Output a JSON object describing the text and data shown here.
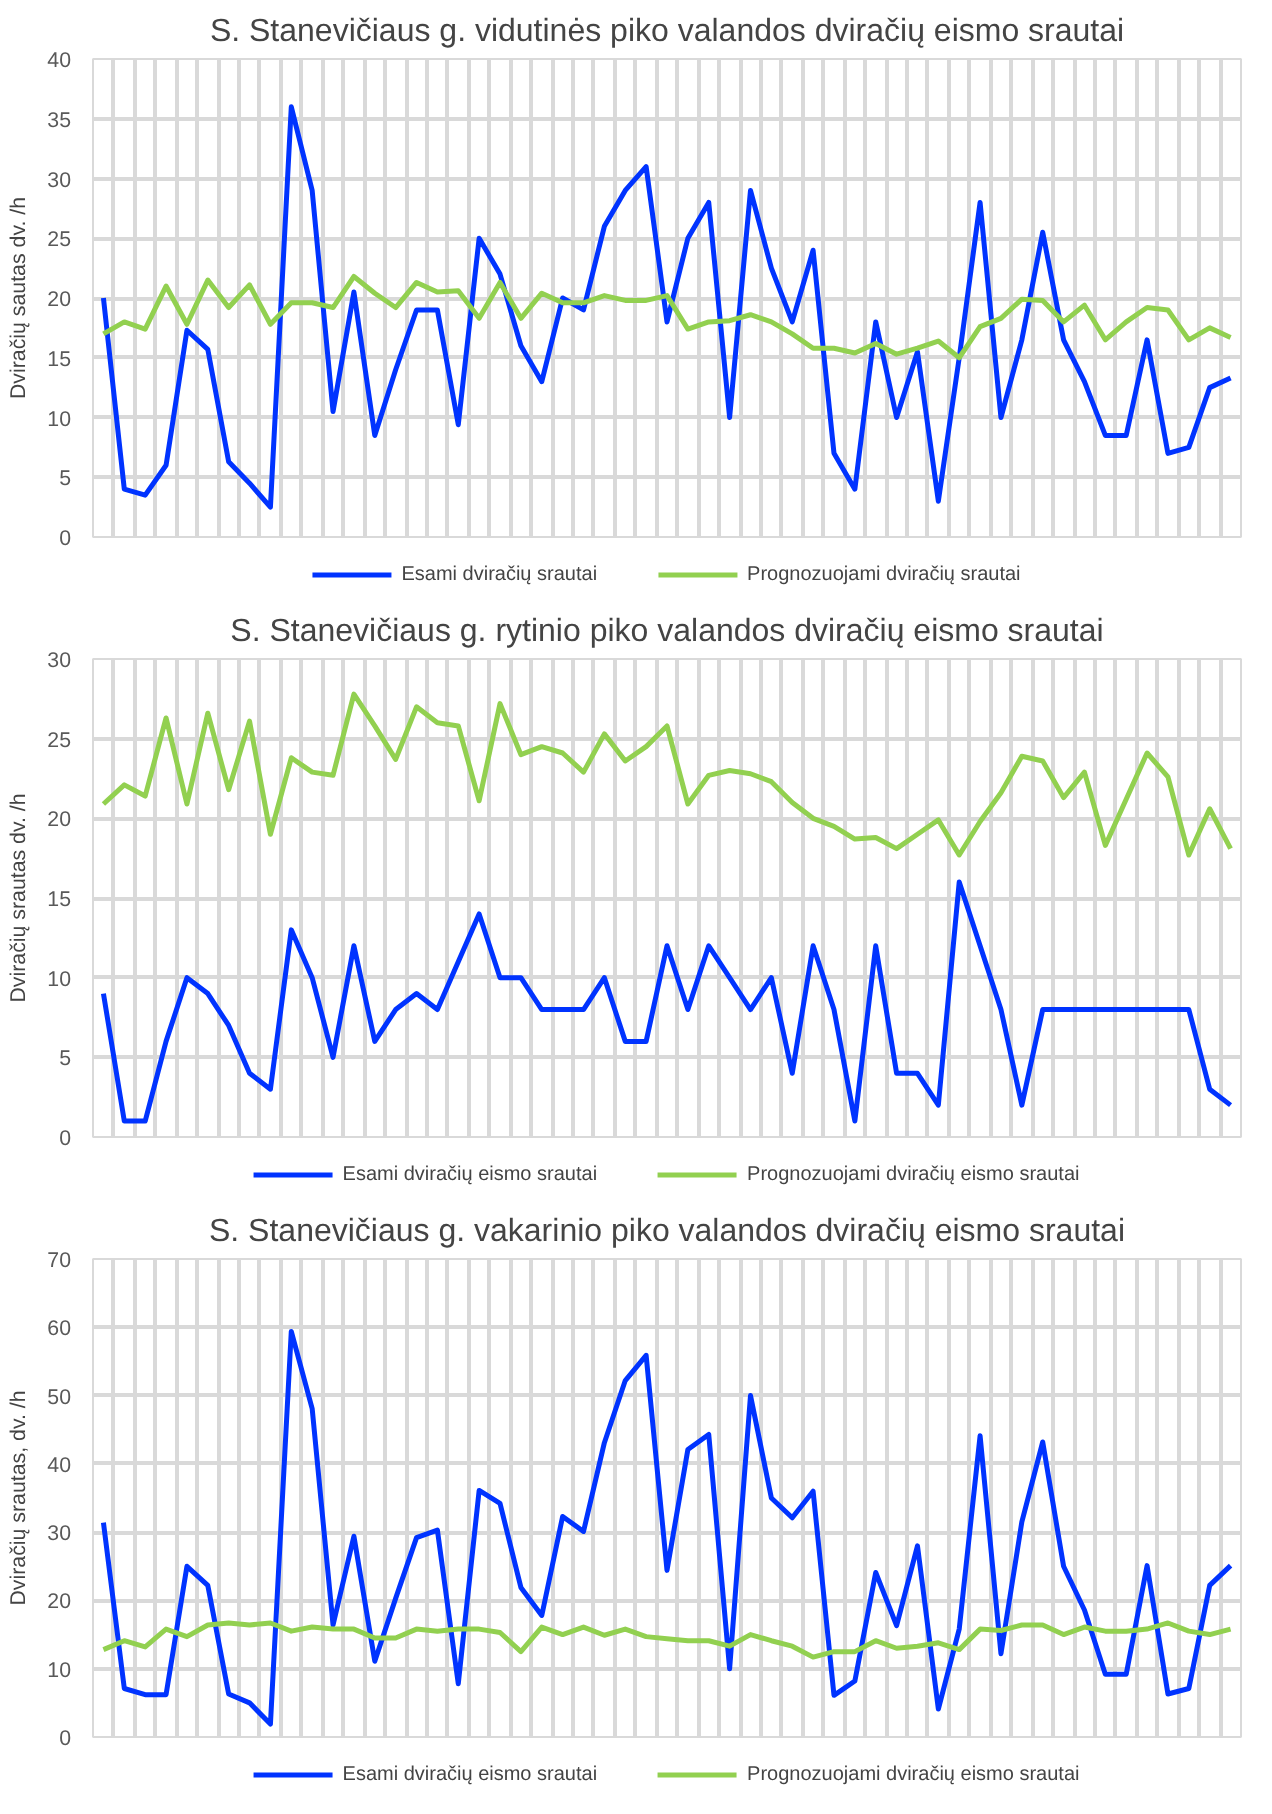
{
  "chart_data": [
    {
      "type": "line",
      "title": "S. Stanevičiaus g. vidutinės piko valandos dviračių eismo srautai",
      "ylabel": "Dviračių sautas dv. /h",
      "categories": [
        null,
        null,
        null,
        null,
        null,
        null,
        null,
        null,
        null,
        null,
        null,
        null,
        null,
        null,
        null,
        null,
        null,
        null,
        null,
        null,
        null,
        null,
        null,
        null,
        null,
        null,
        null,
        null,
        null,
        null,
        null,
        null,
        null,
        null,
        null,
        null,
        null,
        null,
        null,
        null,
        null,
        null,
        null,
        null,
        null,
        null,
        null,
        null,
        null,
        null,
        null,
        null,
        null,
        null,
        null
      ],
      "ylim": [
        0,
        40
      ],
      "yticks": [
        0,
        5,
        10,
        15,
        20,
        25,
        30,
        35,
        40
      ],
      "grid": true,
      "legend": "bottom",
      "tick_labels": "y",
      "marker": "none",
      "line_style": "solid",
      "series": [
        {
          "name": "Esami dviračių srautai",
          "color": "#0033ff",
          "values": [
            20,
            4,
            3.5,
            6,
            17.3,
            15.7,
            6.3,
            4.5,
            2.5,
            36,
            29,
            10.5,
            20.5,
            8.5,
            14,
            19,
            19,
            9.4,
            25,
            22,
            16,
            13,
            20,
            19,
            26,
            29,
            31,
            18,
            25,
            28,
            10,
            29,
            22.5,
            18,
            24,
            7,
            4,
            18,
            10,
            15.5,
            3,
            15,
            28,
            10,
            16.5,
            25.5,
            16.5,
            13,
            8.5,
            8.5,
            16.5,
            7,
            7.5,
            12.5,
            13.3
          ]
        },
        {
          "name": "Prognozuojami dviračių srautai",
          "color": "#92d050",
          "values": [
            17,
            18,
            17.4,
            21,
            17.8,
            21.5,
            19.2,
            21.1,
            17.8,
            19.6,
            19.6,
            19.2,
            21.8,
            20.4,
            19.2,
            21.3,
            20.5,
            20.6,
            18.3,
            21.3,
            18.3,
            20.4,
            19.6,
            19.6,
            20.2,
            19.8,
            19.8,
            20.2,
            17.4,
            18,
            18.1,
            18.6,
            18,
            17,
            15.8,
            15.8,
            15.4,
            16.2,
            15.3,
            15.8,
            16.4,
            15,
            17.6,
            18.3,
            19.9,
            19.8,
            18,
            19.4,
            16.5,
            18,
            19.2,
            19,
            16.5,
            17.5,
            16.7
          ]
        }
      ]
    },
    {
      "type": "line",
      "title": "S. Stanevičiaus g. rytinio piko valandos dviračių eismo srautai",
      "ylabel": "Dviračių srautas dv. /h",
      "categories": [
        null,
        null,
        null,
        null,
        null,
        null,
        null,
        null,
        null,
        null,
        null,
        null,
        null,
        null,
        null,
        null,
        null,
        null,
        null,
        null,
        null,
        null,
        null,
        null,
        null,
        null,
        null,
        null,
        null,
        null,
        null,
        null,
        null,
        null,
        null,
        null,
        null,
        null,
        null,
        null,
        null,
        null,
        null,
        null,
        null,
        null,
        null,
        null,
        null,
        null,
        null,
        null,
        null,
        null,
        null
      ],
      "ylim": [
        0,
        30
      ],
      "yticks": [
        0,
        5,
        10,
        15,
        20,
        25,
        30
      ],
      "grid": true,
      "legend": "bottom",
      "tick_labels": "y",
      "marker": "none",
      "line_style": "solid",
      "series": [
        {
          "name": "Esami dviračių eismo srautai",
          "color": "#0033ff",
          "values": [
            9,
            1,
            1,
            6,
            10,
            9,
            7,
            4,
            3,
            13,
            10,
            5,
            12,
            6,
            8,
            9,
            8,
            11,
            14,
            10,
            10,
            8,
            8,
            8,
            10,
            6,
            6,
            12,
            8,
            12,
            10,
            8,
            10,
            4,
            12,
            8,
            1,
            12,
            4,
            4,
            2,
            16,
            12,
            8,
            2,
            8,
            8,
            8,
            8,
            8,
            8,
            8,
            8,
            3,
            2
          ]
        },
        {
          "name": "Prognozuojami dviračių eismo srautai",
          "color": "#92d050",
          "values": [
            20.9,
            22.1,
            21.4,
            26.3,
            20.9,
            26.6,
            21.8,
            26.1,
            19,
            23.8,
            22.9,
            22.7,
            27.8,
            25.8,
            23.7,
            27,
            26,
            25.8,
            21.1,
            27.2,
            24,
            24.5,
            24.1,
            22.9,
            25.3,
            23.6,
            24.5,
            25.8,
            20.9,
            22.7,
            23,
            22.8,
            22.3,
            21,
            20,
            19.5,
            18.7,
            18.8,
            18.1,
            19,
            19.9,
            17.7,
            19.8,
            21.6,
            23.9,
            23.6,
            21.3,
            22.9,
            18.3,
            21.2,
            24.1,
            22.6,
            17.7,
            20.6,
            18.1
          ]
        }
      ]
    },
    {
      "type": "line",
      "title": "S. Stanevičiaus g. vakarinio piko valandos dviračių eismo srautai",
      "ylabel": "Dviračių srautas, dv. /h",
      "categories": [
        null,
        null,
        null,
        null,
        null,
        null,
        null,
        null,
        null,
        null,
        null,
        null,
        null,
        null,
        null,
        null,
        null,
        null,
        null,
        null,
        null,
        null,
        null,
        null,
        null,
        null,
        null,
        null,
        null,
        null,
        null,
        null,
        null,
        null,
        null,
        null,
        null,
        null,
        null,
        null,
        null,
        null,
        null,
        null,
        null,
        null,
        null,
        null,
        null,
        null,
        null,
        null,
        null,
        null,
        null
      ],
      "ylim": [
        0,
        70
      ],
      "yticks": [
        0,
        10,
        20,
        30,
        40,
        50,
        60,
        70
      ],
      "grid": true,
      "legend": "bottom",
      "tick_labels": "y",
      "marker": "none",
      "line_style": "solid",
      "series": [
        {
          "name": "Esami dviračių eismo srautai",
          "color": "#0033ff",
          "values": [
            31.4,
            7.1,
            6.2,
            6.2,
            25,
            22.2,
            6.3,
            5,
            1.9,
            59.4,
            48.1,
            16.4,
            29.4,
            11.1,
            20.3,
            29.2,
            30.3,
            7.8,
            36.1,
            34.2,
            21.9,
            17.8,
            32.3,
            30.1,
            43.1,
            52.2,
            55.9,
            24.4,
            42.1,
            44.3,
            10,
            50,
            35,
            32.1,
            36,
            6.1,
            8.2,
            24.1,
            16.3,
            28,
            4.1,
            15.8,
            44.1,
            12.2,
            31.5,
            43.2,
            25,
            18.6,
            9.2,
            9.2,
            25.1,
            6.3,
            7.1,
            22.2,
            25.1
          ]
        },
        {
          "name": "Prognozuojami dviračių eismo srautai",
          "color": "#92d050",
          "values": [
            12.8,
            14.1,
            13.2,
            15.8,
            14.7,
            16.4,
            16.7,
            16.4,
            16.7,
            15.5,
            16.1,
            15.8,
            15.8,
            14.5,
            14.5,
            15.8,
            15.5,
            15.8,
            15.8,
            15.3,
            12.5,
            16.1,
            15,
            16.1,
            14.9,
            15.8,
            14.7,
            14.4,
            14.1,
            14.1,
            13.3,
            15,
            14.1,
            13.3,
            11.7,
            12.5,
            12.5,
            14.1,
            13,
            13.3,
            13.8,
            12.8,
            15.8,
            15.6,
            16.4,
            16.4,
            15,
            16.1,
            15.5,
            15.5,
            15.8,
            16.7,
            15.5,
            15,
            15.8
          ]
        }
      ]
    }
  ]
}
